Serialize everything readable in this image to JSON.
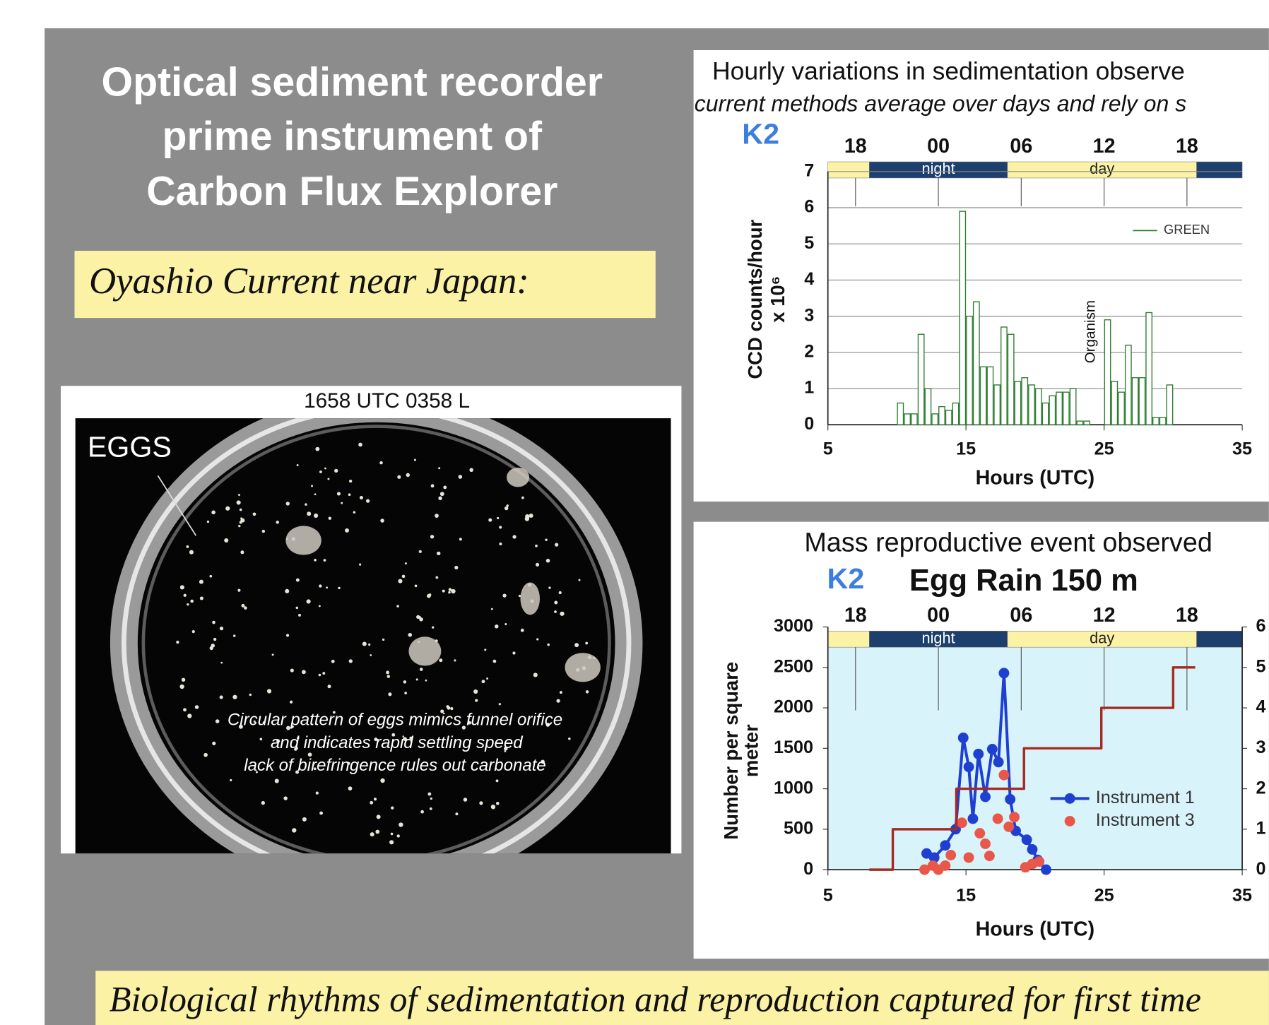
{
  "slide": {
    "title": [
      "Optical sediment recorder",
      "prime instrument of",
      "Carbon Flux Explorer"
    ],
    "subtitle": "Oyashio Current near Japan:",
    "footer": "Biological rhythms of sedimentation and reproduction captured for first time"
  },
  "photo": {
    "caption": "1658 UTC 0358 L",
    "label": "EGGS",
    "note": [
      "Circular pattern of eggs mimics funnel orifice",
      "and indicates rapid settling speed",
      "lack of birefringence rules out carbonate"
    ]
  },
  "chart_data": [
    {
      "type": "histogram",
      "title": "Hourly variations in sedimentation observe",
      "subtitle": "current methods average over days and rely on s",
      "site": "K2",
      "ylabel": [
        "CCD counts/hour",
        "x 10⁶"
      ],
      "xlabel": "Hours (UTC)",
      "annotation": "Organism",
      "xlim": [
        5,
        35
      ],
      "xticks": [
        5,
        15,
        25,
        35
      ],
      "ylim": [
        0,
        7
      ],
      "yticks": [
        0,
        1,
        2,
        3,
        4,
        5,
        6,
        7
      ],
      "grid": true,
      "top_ticks": [
        {
          "value": 7,
          "label": "18"
        },
        {
          "value": 13,
          "label": "00"
        },
        {
          "value": 19,
          "label": "06"
        },
        {
          "value": 25,
          "label": "12"
        },
        {
          "value": 31,
          "label": "18"
        }
      ],
      "bands": [
        {
          "start": 5,
          "end": 8,
          "color": "#fbf2a6"
        },
        {
          "label": "night",
          "start": 8,
          "end": 18,
          "color": "#1d3f6e"
        },
        {
          "label": "day",
          "start": 18,
          "end": 31.7,
          "color": "#fbf2a6"
        },
        {
          "start": 31.7,
          "end": 35,
          "color": "#1d3f6e"
        }
      ],
      "legend": "upper right",
      "bins": [
        10,
        10.5,
        11,
        11.5,
        12,
        12.5,
        13,
        13.5,
        14,
        14.5,
        15,
        15.5,
        16,
        16.5,
        17,
        17.5,
        18,
        18.5,
        19,
        19.5,
        20,
        20.5,
        21,
        21.5,
        22,
        22.5,
        23,
        23.5,
        24,
        24.5,
        25,
        25.5,
        26,
        26.5,
        27,
        27.5,
        28,
        28.5,
        29,
        29.5,
        30
      ],
      "series": [
        {
          "name": "GREEN",
          "color": "#2e7d32",
          "values": [
            0.6,
            0.3,
            0.3,
            2.5,
            1.0,
            0.3,
            0.5,
            0.4,
            0.6,
            5.9,
            3.0,
            3.4,
            1.6,
            1.6,
            1.1,
            2.7,
            2.5,
            1.2,
            1.3,
            1.1,
            1.0,
            0.6,
            0.8,
            0.9,
            0.9,
            1.0,
            0.1,
            0.1,
            0,
            0,
            2.9,
            1.2,
            0.9,
            2.2,
            1.3,
            1.3,
            3.1,
            0.2,
            0.2,
            1.1
          ]
        }
      ]
    },
    {
      "type": "line",
      "title": "Mass reproductive event observed",
      "site": "K2",
      "subtitle": "Egg Rain 150 m",
      "ylabel": [
        "Number per square",
        "meter"
      ],
      "xlabel": "Hours (UTC)",
      "xlim": [
        5,
        35
      ],
      "xticks": [
        5,
        15,
        25,
        35
      ],
      "ylim": [
        0,
        3000
      ],
      "yticks": [
        0,
        500,
        1000,
        1500,
        2000,
        2500,
        3000
      ],
      "y2lim": [
        0,
        6
      ],
      "y2ticks": [
        0,
        1,
        2,
        3,
        4,
        5,
        6
      ],
      "grid": false,
      "background": "#d8f4fa",
      "top_ticks": [
        {
          "value": 7,
          "label": "18"
        },
        {
          "value": 13,
          "label": "00"
        },
        {
          "value": 19,
          "label": "06"
        },
        {
          "value": 25,
          "label": "12"
        },
        {
          "value": 31,
          "label": "18"
        }
      ],
      "bands": [
        {
          "start": 5,
          "end": 8,
          "color": "#fbf2a6"
        },
        {
          "label": "night",
          "start": 8,
          "end": 18,
          "color": "#1d3f6e"
        },
        {
          "label": "day",
          "start": 18,
          "end": 31.7,
          "color": "#fbf2a6"
        },
        {
          "start": 31.7,
          "end": 35,
          "color": "#1d3f6e"
        }
      ],
      "legend": "right",
      "series": [
        {
          "name": "Instrument 1",
          "color": "#1f3fd1",
          "line": true,
          "markers": true,
          "x": [
            12.15,
            12.7,
            13.5,
            14.25,
            14.8,
            15.2,
            15.5,
            15.9,
            16.4,
            16.9,
            17.35,
            17.75,
            18.2,
            18.6,
            19.4,
            19.8,
            20.2,
            20.8
          ],
          "values": [
            200,
            150,
            300,
            500,
            1630,
            1270,
            630,
            1430,
            900,
            1490,
            1330,
            2430,
            870,
            480,
            370,
            250,
            120,
            0
          ]
        },
        {
          "name": "Instrument 3",
          "color": "#e8574a",
          "line": false,
          "markers": true,
          "x": [
            12.0,
            12.6,
            13.0,
            13.5,
            13.9,
            14.7,
            15.2,
            16.0,
            16.4,
            16.7,
            17.3,
            17.75,
            18.1,
            18.5,
            19.3,
            19.8,
            20.3
          ],
          "values": [
            0,
            50,
            0,
            50,
            180,
            580,
            150,
            450,
            320,
            170,
            630,
            1170,
            530,
            650,
            30,
            70,
            100
          ]
        },
        {
          "color": "#a52a1f",
          "axis": "y2",
          "line": true,
          "markers": false,
          "x": [
            8,
            9.7,
            9.7,
            14.3,
            14.3,
            19.2,
            19.2,
            24.8,
            24.8,
            30,
            30,
            31.6
          ],
          "values": [
            0,
            0,
            1,
            1,
            2,
            2,
            3,
            3,
            4,
            4,
            5,
            5
          ]
        }
      ]
    }
  ]
}
